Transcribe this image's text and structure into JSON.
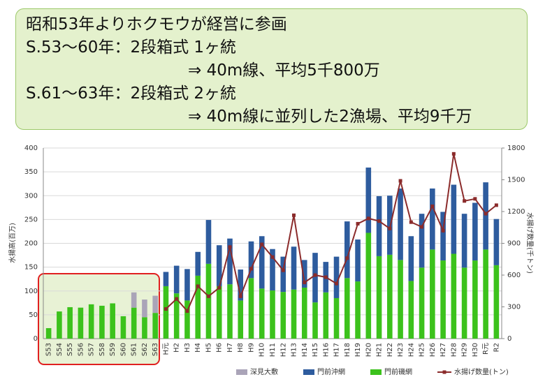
{
  "chart_data": {
    "type": "bar",
    "annotations": [
      "昭和53年よりホクモウが経営に参画",
      "S.53～60年：2段箱式 1ヶ統",
      "⇒ 40m線、平均5千800万",
      "S.61～63年：2段箱式 2ヶ統",
      "⇒ 40m線に並列した2漁場、平均9千万"
    ],
    "y_label": "水揚高(百万)",
    "y2_label": "水揚げ数量(千トン)",
    "categories": [
      "S53",
      "S54",
      "S55",
      "S56",
      "S57",
      "S58",
      "S59",
      "S60",
      "S61",
      "S62",
      "S63",
      "H元",
      "H2",
      "H3",
      "H4",
      "H5",
      "H6",
      "H7",
      "H8",
      "H9",
      "H10",
      "H11",
      "H12",
      "H13",
      "H14",
      "H15",
      "H16",
      "H17",
      "H18",
      "H19",
      "H20",
      "H21",
      "H22",
      "H23",
      "H24",
      "H25",
      "H26",
      "H27",
      "H28",
      "H29",
      "H30",
      "R元",
      "R2"
    ],
    "series": [
      {
        "name": "深見大敷",
        "color": "#aaa4b8",
        "values": [
          null,
          null,
          null,
          null,
          null,
          null,
          null,
          null,
          32,
          37,
          36,
          null,
          null,
          null,
          null,
          null,
          null,
          null,
          null,
          null,
          null,
          null,
          null,
          null,
          null,
          null,
          null,
          null,
          null,
          null,
          null,
          null,
          null,
          null,
          null,
          null,
          null,
          null,
          null,
          null,
          null,
          null,
          null
        ]
      },
      {
        "name": "門前沖網",
        "color": "#2e5c9e",
        "values": [
          null,
          null,
          null,
          null,
          null,
          null,
          null,
          null,
          null,
          null,
          null,
          30,
          58,
          66,
          50,
          92,
          86,
          96,
          65,
          77,
          110,
          87,
          74,
          90,
          58,
          104,
          64,
          87,
          119,
          88,
          137,
          126,
          124,
          150,
          94,
          113,
          128,
          102,
          145,
          113,
          121,
          141,
          97
        ]
      },
      {
        "name": "門前磯網",
        "color": "#3cc21c",
        "values": [
          22,
          57,
          66,
          65,
          72,
          69,
          74,
          47,
          65,
          45,
          54,
          110,
          95,
          80,
          132,
          157,
          110,
          114,
          80,
          127,
          105,
          101,
          98,
          103,
          107,
          76,
          97,
          85,
          127,
          120,
          222,
          173,
          176,
          165,
          121,
          149,
          187,
          164,
          178,
          149,
          164,
          187,
          154
        ]
      },
      {
        "name": "水揚げ数量(トン)",
        "color": "#8b2b2b",
        "type": "line",
        "axis": "y2",
        "values": [
          null,
          null,
          null,
          null,
          null,
          null,
          null,
          null,
          null,
          null,
          null,
          280,
          375,
          260,
          495,
          400,
          480,
          865,
          400,
          660,
          890,
          770,
          645,
          1165,
          530,
          600,
          580,
          520,
          760,
          1085,
          1135,
          1110,
          1040,
          1490,
          1100,
          1055,
          1250,
          1020,
          1745,
          1300,
          1320,
          1180,
          1260
        ]
      }
    ],
    "ylim": [
      0,
      400
    ],
    "yticks": [
      0,
      50,
      100,
      150,
      200,
      250,
      300,
      350,
      400
    ],
    "y2lim": [
      0,
      1800
    ],
    "y2ticks": [
      0,
      300,
      600,
      900,
      1200,
      1500,
      1800
    ],
    "grid": true,
    "legend": "bottom"
  }
}
